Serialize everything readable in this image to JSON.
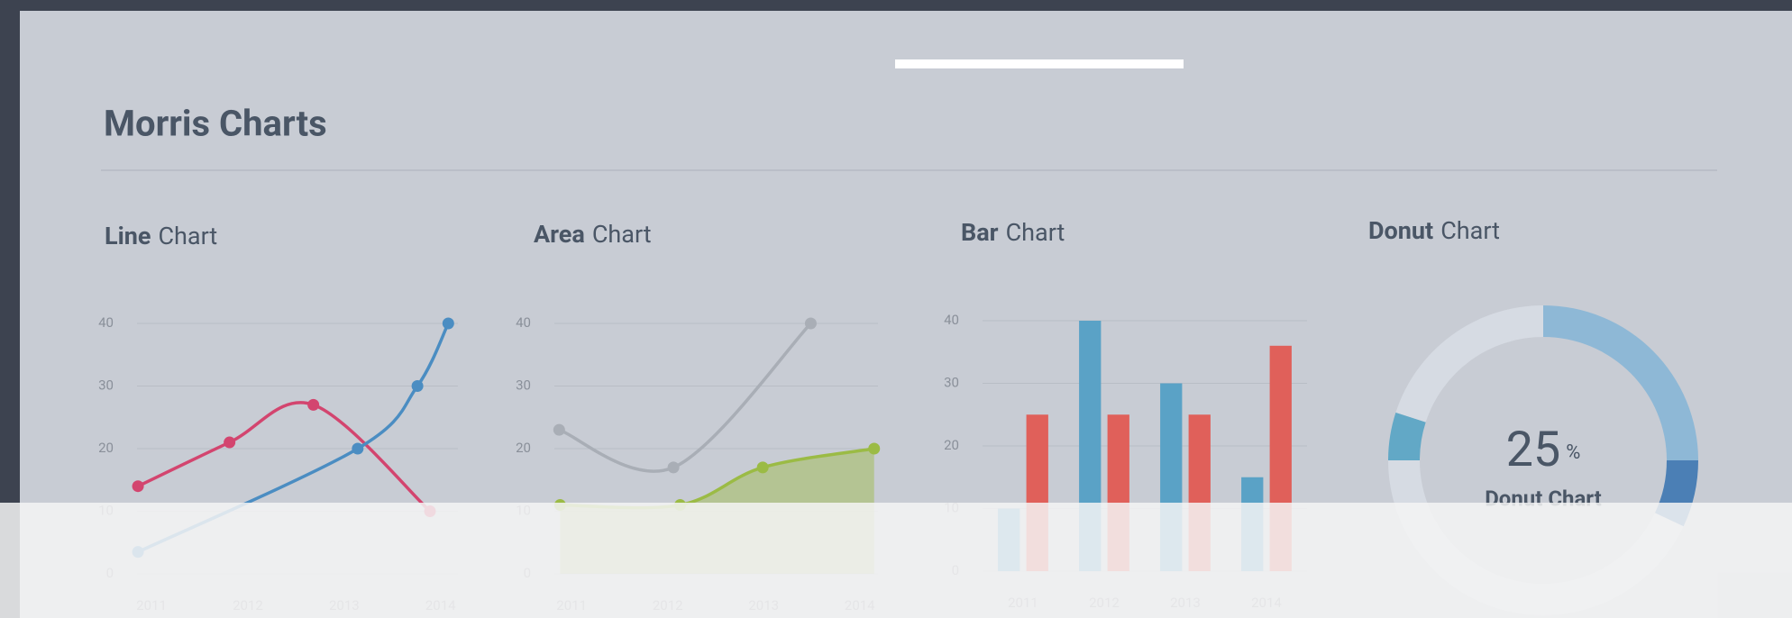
{
  "header": {
    "title": "Morris Charts"
  },
  "chart_data": [
    {
      "type": "line",
      "title": [
        "Line",
        "Chart"
      ],
      "xlim": [
        2010.85,
        2014.18
      ],
      "xticks": [
        2011,
        2012,
        2013,
        2014
      ],
      "ylim": [
        0,
        40
      ],
      "yticks": [
        0,
        10,
        20,
        30,
        40
      ],
      "grid": true,
      "series": [
        {
          "color": "#d3456f",
          "x": [
            2010.86,
            2011.81,
            2012.68,
            2013.89
          ],
          "values": [
            14,
            21,
            27,
            10
          ]
        },
        {
          "color": "#4b8dc2",
          "x": [
            2010.86,
            2013.14,
            2013.76,
            2014.08
          ],
          "values": [
            3.5,
            20,
            30,
            40
          ]
        }
      ]
    },
    {
      "type": "area",
      "title": [
        "Area",
        "Chart"
      ],
      "xlim": [
        2010.82,
        2014.19
      ],
      "xticks": [
        2011,
        2012,
        2013,
        2014
      ],
      "ylim": [
        0,
        40
      ],
      "yticks": [
        0,
        10,
        20,
        30,
        40
      ],
      "grid": true,
      "series": [
        {
          "color": "#a9aeb6",
          "filled": false,
          "x": [
            2010.87,
            2012.06,
            2013.49
          ],
          "values": [
            23,
            17,
            40
          ]
        },
        {
          "color": "#9bbb45",
          "filled": true,
          "x": [
            2010.88,
            2012.13,
            2012.99,
            2014.15
          ],
          "values": [
            11,
            11,
            17,
            20
          ]
        }
      ]
    },
    {
      "type": "bar",
      "title": [
        "Bar",
        "Chart"
      ],
      "categories": [
        "2011",
        "2012",
        "2013",
        "2014"
      ],
      "ylim": [
        0,
        40
      ],
      "yticks": [
        0,
        10,
        20,
        30,
        40
      ],
      "grid": true,
      "series": [
        {
          "color": "#5aa2c6",
          "values": [
            10,
            40,
            30,
            15
          ]
        },
        {
          "color": "#e0605a",
          "values": [
            25,
            25,
            25,
            36
          ]
        }
      ]
    },
    {
      "type": "donut",
      "title": [
        "Donut",
        "Chart"
      ],
      "values": [
        25,
        7,
        43,
        5,
        20
      ],
      "colors": [
        "#8eb8d6",
        "#4b7fb5",
        "#d6dbe3",
        "#62a8c6",
        "#d6dbe3"
      ],
      "center_value": 25,
      "center_unit": "%",
      "center_label": "Donut Chart"
    }
  ]
}
